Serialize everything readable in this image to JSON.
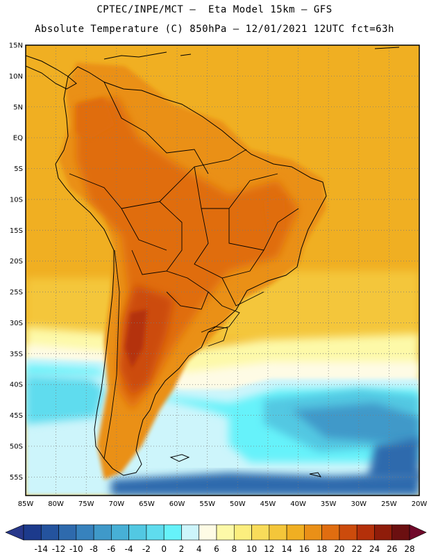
{
  "header": {
    "line1": "CPTEC/INPE/MCT –  Eta Model 15km – GFS",
    "line2": "Absolute Temperature (C) 850hPa – 12/01/2021 12UTC fct=63h"
  },
  "axes": {
    "lat_labels": [
      "15N",
      "10N",
      "5N",
      "EQ",
      "5S",
      "10S",
      "15S",
      "20S",
      "25S",
      "30S",
      "35S",
      "40S",
      "45S",
      "50S",
      "55S"
    ],
    "lon_labels": [
      "85W",
      "80W",
      "75W",
      "70W",
      "65W",
      "60W",
      "55W",
      "50W",
      "45W",
      "40W",
      "35W",
      "30W",
      "25W",
      "20W"
    ],
    "lat_range": [
      15,
      -58
    ],
    "lon_range": [
      -85,
      -20
    ]
  },
  "colorbar": {
    "ticks": [
      "-14",
      "-12",
      "-10",
      "-8",
      "-6",
      "-4",
      "-2",
      "0",
      "2",
      "4",
      "6",
      "8",
      "10",
      "12",
      "14",
      "16",
      "18",
      "20",
      "22",
      "24",
      "26",
      "28"
    ],
    "colors": [
      "#1c3a8c",
      "#24539e",
      "#2e6aad",
      "#3782bd",
      "#3f99c9",
      "#47b0d6",
      "#52c8e2",
      "#5fdcee",
      "#66f2fa",
      "#cdf5fb",
      "#fefbe5",
      "#fdf9a8",
      "#fcee7e",
      "#f8dc5a",
      "#f4c63a",
      "#f0af22",
      "#ea9017",
      "#e06d10",
      "#cc4b0c",
      "#b4300a",
      "#8f1c0a",
      "#6b0f10"
    ],
    "low_arrow_color": "#27378a",
    "high_arrow_color": "#70082a"
  },
  "map": {
    "field": {
      "ocean_north": "#f0af22",
      "ocean_mid": "#f4c63a",
      "land_warm": "#ea9017",
      "land_hot": "#e06d10",
      "land_hottest": "#cc4b0c",
      "land_peak": "#b4300a",
      "cool_band_a": "#fdf9a8",
      "cool_band_b": "#fefbe5",
      "cold_a": "#cdf5fb",
      "cold_b": "#66f2fa",
      "cold_c": "#5fdcee",
      "cold_d": "#52c8e2",
      "cold_e": "#3f99c9",
      "cold_f": "#2e6aad"
    }
  }
}
